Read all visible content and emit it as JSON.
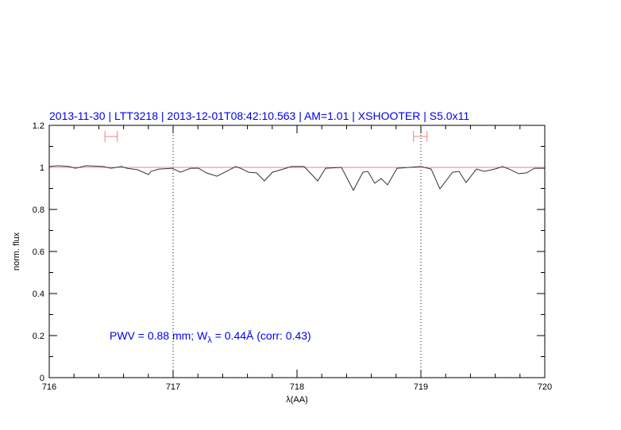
{
  "chart_data": {
    "type": "line",
    "title": "2013-11-30 | LTT3218 | 2013-12-01T08:42:10.563 | AM=1.01 | XSHOOTER | S5.0x11",
    "xlabel": "λ(AA)",
    "ylabel": "norm. flux",
    "xlim": [
      716,
      720
    ],
    "ylim": [
      0,
      1.2
    ],
    "xticks": [
      "716",
      "717",
      "718",
      "719",
      "720"
    ],
    "yticks": [
      "0",
      "0.2",
      "0.4",
      "0.6",
      "0.8",
      "1",
      "1.2"
    ],
    "grid": false,
    "annotation": {
      "prefix": "PWV  =  0.88  mm;  W",
      "subscript": "λ",
      "suffix": "  =  0.44Å  (corr: 0.43)"
    },
    "reference_line": {
      "y": 1.0,
      "color": "#f08080"
    },
    "vertical_lines": [
      717,
      719
    ],
    "ranges": [
      {
        "x": [
          716.45,
          716.55
        ],
        "y": 1.147
      },
      {
        "x": [
          718.94,
          719.05
        ],
        "y": 1.147
      }
    ],
    "colors": {
      "spectrum": "#333333",
      "title": "#0000ee",
      "ranges": "#f08080"
    },
    "series": [
      {
        "x": [
          716.0,
          716.071,
          716.16,
          716.212,
          716.295,
          716.436,
          716.5,
          716.583,
          716.628,
          716.712,
          716.801,
          716.821,
          716.885,
          716.994,
          717.058,
          717.141,
          717.205,
          717.269,
          717.353,
          717.417,
          717.506,
          717.545,
          717.609,
          717.673,
          717.737,
          717.801,
          717.91,
          717.955,
          718.058,
          718.167,
          718.231,
          718.359,
          718.455,
          718.532,
          718.571,
          718.628,
          718.679,
          718.731,
          718.808,
          719.0,
          719.083,
          719.154,
          719.256,
          719.308,
          719.365,
          719.449,
          719.513,
          719.596,
          719.66,
          719.724,
          719.788,
          719.853,
          719.917,
          720.0
        ],
        "y": [
          1.004,
          1.008,
          1.004,
          0.996,
          1.008,
          1.004,
          0.996,
          1.004,
          0.996,
          0.989,
          0.966,
          0.981,
          0.992,
          0.996,
          0.977,
          0.996,
          0.996,
          0.974,
          0.958,
          0.977,
          1.004,
          0.996,
          0.977,
          0.974,
          0.936,
          0.977,
          0.996,
          1.004,
          1.004,
          0.936,
          0.996,
          1.0,
          0.891,
          0.977,
          0.981,
          0.925,
          0.947,
          0.917,
          0.996,
          1.004,
          0.992,
          0.898,
          0.977,
          0.981,
          0.928,
          0.992,
          0.981,
          0.992,
          1.004,
          0.989,
          0.97,
          0.974,
          0.996,
          0.996
        ]
      }
    ]
  }
}
